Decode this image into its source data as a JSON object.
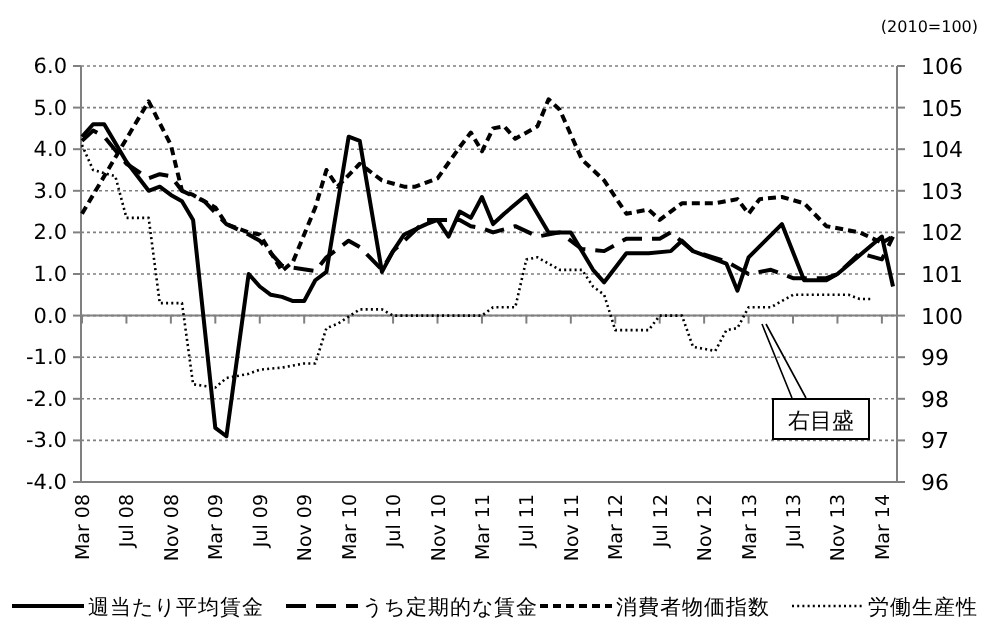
{
  "chart_data": {
    "type": "line",
    "y2label": "(2010=100)",
    "legend": "bottom",
    "grid": "y",
    "xlim": [
      "2008-03",
      "2014-04"
    ],
    "xticks": [
      {
        "value": "2008-03",
        "label": "Mar 08"
      },
      {
        "value": "2008-07",
        "label": "Jul 08"
      },
      {
        "value": "2008-11",
        "label": "Nov 08"
      },
      {
        "value": "2009-03",
        "label": "Mar 09"
      },
      {
        "value": "2009-07",
        "label": "Jul 09"
      },
      {
        "value": "2009-11",
        "label": "Nov 09"
      },
      {
        "value": "2010-03",
        "label": "Mar 10"
      },
      {
        "value": "2010-07",
        "label": "Jul 10"
      },
      {
        "value": "2010-11",
        "label": "Nov 10"
      },
      {
        "value": "2011-03",
        "label": "Mar 11"
      },
      {
        "value": "2011-07",
        "label": "Jul 11"
      },
      {
        "value": "2011-11",
        "label": "Nov 11"
      },
      {
        "value": "2012-03",
        "label": "Mar 12"
      },
      {
        "value": "2012-07",
        "label": "Jul 12"
      },
      {
        "value": "2012-11",
        "label": "Nov 12"
      },
      {
        "value": "2013-03",
        "label": "Mar 13"
      },
      {
        "value": "2013-07",
        "label": "Jul 13"
      },
      {
        "value": "2013-11",
        "label": "Nov 13"
      },
      {
        "value": "2014-03",
        "label": "Mar 14"
      }
    ],
    "ylim": [
      -4,
      6
    ],
    "yticks": [
      {
        "value": -4,
        "label": "-4.0"
      },
      {
        "value": -3,
        "label": "-3.0"
      },
      {
        "value": -2,
        "label": "-2.0"
      },
      {
        "value": -1,
        "label": "-1.0"
      },
      {
        "value": 0,
        "label": "0.0"
      },
      {
        "value": 1,
        "label": "1.0"
      },
      {
        "value": 2,
        "label": "2.0"
      },
      {
        "value": 3,
        "label": "3.0"
      },
      {
        "value": 4,
        "label": "4.0"
      },
      {
        "value": 5,
        "label": "5.0"
      },
      {
        "value": 6,
        "label": "6.0"
      }
    ],
    "y2lim": [
      96,
      106
    ],
    "y2ticks": [
      96,
      97,
      98,
      99,
      100,
      101,
      102,
      103,
      104,
      105,
      106
    ],
    "annotations": [
      "右目盛"
    ],
    "series": [
      {
        "name": "週当たり平均賃金",
        "color": "#000000",
        "line_style": "solid",
        "x": [
          "2008-03",
          "2008-04",
          "2008-05",
          "2008-07",
          "2008-09",
          "2008-10",
          "2008-11",
          "2008-12",
          "2009-01",
          "2009-03",
          "2009-04",
          "2009-06",
          "2009-07",
          "2009-08",
          "2009-09",
          "2009-10",
          "2009-11",
          "2009-12",
          "2010-01",
          "2010-03",
          "2010-04",
          "2010-06",
          "2010-07",
          "2010-08",
          "2010-10",
          "2010-11",
          "2010-12",
          "2011-01",
          "2011-02",
          "2011-03",
          "2011-04",
          "2011-05",
          "2011-07",
          "2011-09",
          "2011-11",
          "2012-01",
          "2012-02",
          "2012-04",
          "2012-06",
          "2012-08",
          "2012-09",
          "2012-10",
          "2013-01",
          "2013-02",
          "2013-03",
          "2013-06",
          "2013-08",
          "2013-10",
          "2013-11",
          "2014-03",
          "2014-04"
        ],
        "values": [
          4.3,
          4.6,
          4.6,
          3.7,
          3.0,
          3.1,
          2.9,
          2.75,
          2.3,
          -2.7,
          -2.9,
          1.0,
          0.7,
          0.5,
          0.45,
          0.35,
          0.35,
          0.85,
          1.05,
          4.3,
          4.2,
          1.05,
          1.55,
          1.95,
          2.2,
          2.3,
          1.9,
          2.5,
          2.35,
          2.85,
          2.2,
          2.45,
          2.9,
          2.0,
          2.0,
          1.1,
          0.8,
          1.5,
          1.5,
          1.55,
          1.8,
          1.55,
          1.25,
          0.6,
          1.4,
          2.2,
          0.85,
          0.85,
          1.0,
          1.9,
          0.7
        ]
      },
      {
        "name": "うち定期的な賃金",
        "color": "#000000",
        "line_style": "dashed",
        "x": [
          "2008-03",
          "2008-04",
          "2008-05",
          "2008-07",
          "2008-09",
          "2008-10",
          "2008-11",
          "2008-12",
          "2009-02",
          "2009-04",
          "2009-06",
          "2009-07",
          "2009-09",
          "2009-10",
          "2009-12",
          "2010-01",
          "2010-03",
          "2010-04",
          "2010-06",
          "2010-07",
          "2010-09",
          "2010-10",
          "2011-01",
          "2011-02",
          "2011-03",
          "2011-04",
          "2011-06",
          "2011-08",
          "2011-10",
          "2011-12",
          "2012-02",
          "2012-04",
          "2012-07",
          "2012-08",
          "2012-10",
          "2013-01",
          "2013-03",
          "2013-05",
          "2013-07",
          "2013-10",
          "2013-11",
          "2014-01",
          "2014-03",
          "2014-04"
        ],
        "values": [
          4.2,
          4.45,
          4.3,
          3.65,
          3.3,
          3.4,
          3.35,
          3.0,
          2.75,
          2.2,
          1.95,
          1.8,
          1.2,
          1.15,
          1.07,
          1.4,
          1.8,
          1.65,
          1.1,
          1.55,
          2.05,
          2.3,
          2.3,
          2.15,
          2.1,
          2.0,
          2.15,
          1.9,
          2.0,
          1.6,
          1.55,
          1.85,
          1.85,
          2.0,
          1.55,
          1.3,
          1.0,
          1.1,
          0.9,
          0.9,
          1.0,
          1.5,
          1.35,
          1.9
        ]
      },
      {
        "name": "消費者物価指数",
        "color": "#000000",
        "line_style": "dashed",
        "x": [
          "2008-03",
          "2008-09",
          "2008-11",
          "2008-12",
          "2009-01",
          "2009-03",
          "2009-04",
          "2009-06",
          "2009-07",
          "2009-09",
          "2009-10",
          "2009-12",
          "2010-01",
          "2010-02",
          "2010-04",
          "2010-06",
          "2010-08",
          "2010-09",
          "2010-11",
          "2011-01",
          "2011-02",
          "2011-03",
          "2011-04",
          "2011-05",
          "2011-06",
          "2011-08",
          "2011-09",
          "2011-10",
          "2011-12",
          "2012-01",
          "2012-02",
          "2012-04",
          "2012-06",
          "2012-07",
          "2012-09",
          "2012-12",
          "2013-02",
          "2013-03",
          "2013-04",
          "2013-06",
          "2013-08",
          "2013-10",
          "2014-01",
          "2014-03",
          "2014-04"
        ],
        "values": [
          2.45,
          5.15,
          4.1,
          3.0,
          2.9,
          2.6,
          2.2,
          2.0,
          1.95,
          1.07,
          1.3,
          2.6,
          3.5,
          3.1,
          3.65,
          3.25,
          3.1,
          3.1,
          3.3,
          4.05,
          4.4,
          3.95,
          4.5,
          4.55,
          4.25,
          4.55,
          5.2,
          4.95,
          3.75,
          3.5,
          3.25,
          2.45,
          2.55,
          2.3,
          2.7,
          2.7,
          2.8,
          2.45,
          2.8,
          2.85,
          2.7,
          2.15,
          2.0,
          1.75,
          1.9
        ]
      },
      {
        "name": "労働生産性",
        "color": "#000000",
        "line_style": "dotted",
        "axis": "y2",
        "x": [
          "2008-03",
          "2008-04",
          "2008-06",
          "2008-07",
          "2008-09",
          "2008-10",
          "2008-12",
          "2009-01",
          "2009-03",
          "2009-04",
          "2009-06",
          "2009-07",
          "2009-09",
          "2009-11",
          "2009-12",
          "2010-01",
          "2010-02",
          "2010-04",
          "2010-06",
          "2010-07",
          "2011-02",
          "2011-03",
          "2011-04",
          "2011-06",
          "2011-07",
          "2011-08",
          "2011-10",
          "2011-12",
          "2012-01",
          "2012-02",
          "2012-03",
          "2012-06",
          "2012-07",
          "2012-09",
          "2012-10",
          "2012-12",
          "2013-01",
          "2013-02",
          "2013-03",
          "2013-05",
          "2013-07",
          "2013-12",
          "2014-01",
          "2014-02"
        ],
        "values": [
          104.1,
          103.5,
          103.35,
          102.35,
          102.35,
          100.3,
          100.3,
          98.35,
          98.27,
          98.5,
          98.6,
          98.7,
          98.75,
          98.85,
          98.85,
          99.7,
          99.8,
          100.15,
          100.15,
          100.0,
          100.0,
          100.0,
          100.2,
          100.2,
          101.35,
          101.4,
          101.1,
          101.1,
          100.7,
          100.5,
          99.65,
          99.65,
          100.0,
          100.0,
          99.25,
          99.15,
          99.65,
          99.7,
          100.2,
          100.2,
          100.5,
          100.5,
          100.4,
          100.4
        ]
      }
    ]
  }
}
